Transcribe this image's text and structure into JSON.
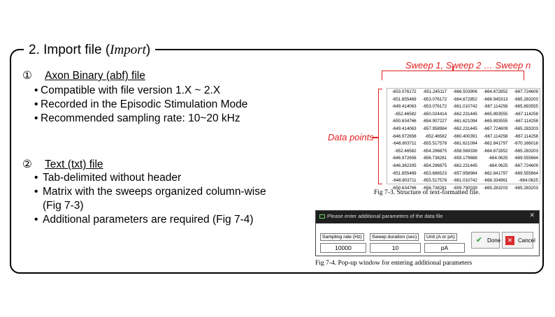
{
  "section": {
    "title_prefix": "2. Import file (",
    "title_italic": "Import",
    "title_suffix": ")"
  },
  "abf": {
    "number": "①",
    "title": "Axon Binary (abf) file",
    "bullets": [
      "Compatible  with  file version  1.X ~ 2.X",
      "Recorded  in the Episodic Stimulation Mode",
      "Recommended  sampling  rate:  10~20 kHz"
    ]
  },
  "txt": {
    "number": "②",
    "title": "Text  (txt)  file",
    "bullets": [
      "Tab-delimited without header",
      "Matrix with the sweeps organized column-wise",
      "(Fig 7-3)",
      "Additional parameters are required (Fig 7-4)"
    ]
  },
  "figure73": {
    "sweep_label": "Sweep 1, Sweep 2 … Sweep n",
    "datapoints_label": "Data points",
    "caption": "Fig 7-3. Structure of text-formatted file.",
    "rows": [
      [
        "-653.076172",
        "-651.245117",
        "-666.503906",
        "-664.672852",
        "-667.724609"
      ],
      [
        "-651.855469",
        "-653.076172",
        "-664.672852",
        "-666.945313",
        "-665.283203"
      ],
      [
        "-649.414063",
        "-653.076172",
        "-661.010742",
        "-667.114258",
        "-665.893555"
      ],
      [
        "-652.46582",
        "-650.024414",
        "-662.231445",
        "-665.893555",
        "-667.114258"
      ],
      [
        "-650.634766",
        "-654.907227",
        "-661.621094",
        "-665.893555",
        "-667.114258"
      ],
      [
        "-649.414063",
        "-657.958984",
        "-662.231445",
        "-667.724609",
        "-665.283203"
      ],
      [
        "-646.972656",
        "-652.46582",
        "-660.400391",
        "-667.114258",
        "-667.114258"
      ],
      [
        "-648.803711",
        "-655.517578",
        "-661.621094",
        "-662.841797",
        "-670.166016"
      ],
      [
        "-652.46582",
        "-654.296875",
        "-658.569336",
        "-664.672852",
        "-665.283203"
      ],
      [
        "-646.972656",
        "-656.738281",
        "-659.179688",
        "-664.0625",
        "-669.555664"
      ],
      [
        "-646.362305",
        "-654.296875",
        "-662.231445",
        "-664.0625",
        "-667.724609"
      ],
      [
        "-651.855469",
        "-653.686523",
        "-657.958984",
        "-662.841797",
        "-669.555664"
      ],
      [
        "-648.803711",
        "-655.517578",
        "-661.010742",
        "-668.334961",
        "-664.0625"
      ],
      [
        "-650.634766",
        "-656.738281",
        "-659.790039",
        "-665.283203",
        "-665.283203"
      ]
    ]
  },
  "figure74": {
    "dialog_title": "Please enter additional parameters of the data file",
    "close": "✕",
    "sampling_label": "Sampling rate (Hz)",
    "sampling_value": "10000",
    "duration_label": "Sweep duration (sec)",
    "duration_value": "10",
    "unit_label": "Unit (A or pA)",
    "unit_value": "pA",
    "done_label": "Done",
    "cancel_label": "Cancel",
    "caption": "Fig 7-4. Pop-up window for entering additional parameters"
  },
  "colors": {
    "accent_red": "#e02020",
    "dialog_bg": "#1f1f1f",
    "done_green": "#2e9e3a",
    "cancel_red": "#d92b2b"
  },
  "icons": {
    "done": "check-icon",
    "cancel": "x-box-icon",
    "window": "window-icon"
  }
}
